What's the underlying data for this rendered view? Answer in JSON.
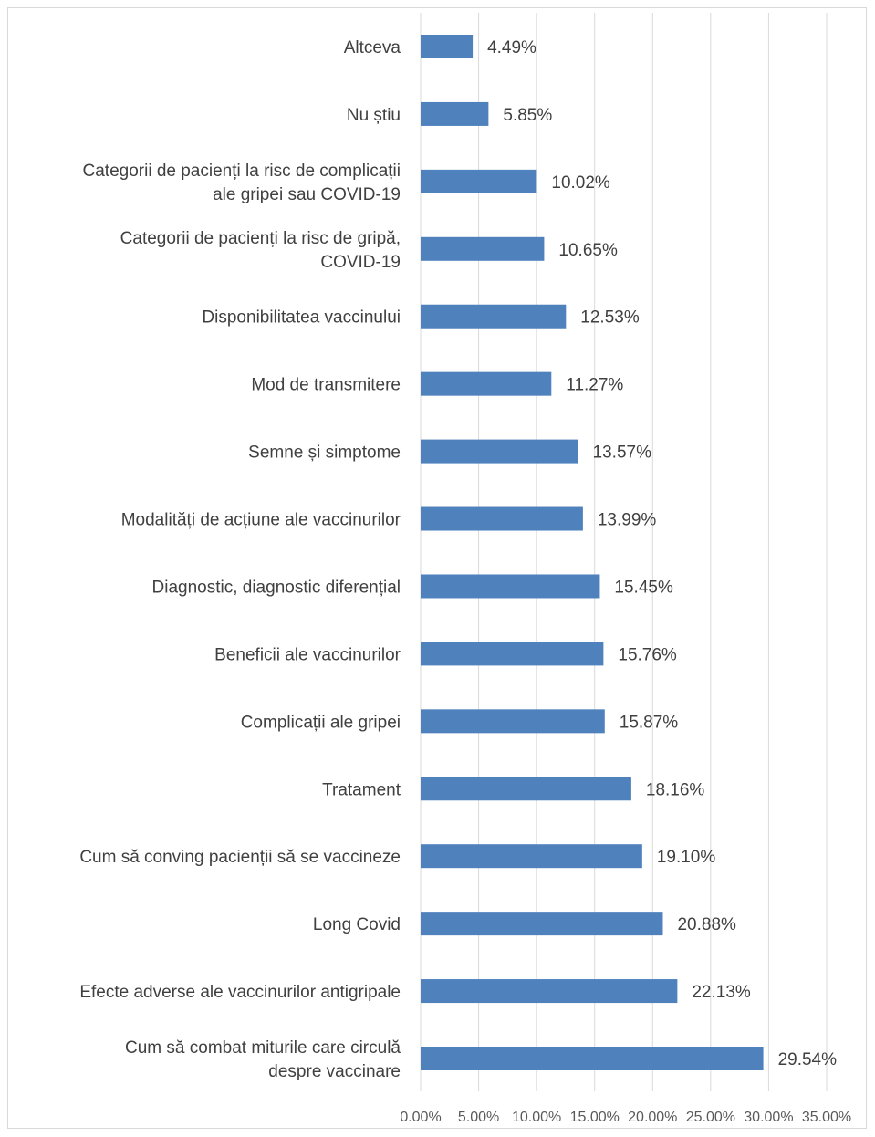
{
  "chart_data": {
    "type": "bar",
    "orientation": "horizontal",
    "categories": [
      "Altceva",
      "Nu știu",
      "Categorii de pacienți la risc de complicații ale gripei sau COVID-19",
      "Categorii de pacienți la risc de gripă, COVID-19",
      "Disponibilitatea vaccinului",
      "Mod de transmitere",
      "Semne și simptome",
      "Modalități de acțiune ale vaccinurilor",
      "Diagnostic, diagnostic diferențial",
      "Beneficii ale vaccinurilor",
      "Complicații ale gripei",
      "Tratament",
      "Cum să conving pacienții să se vaccineze",
      "Long Covid",
      "Efecte adverse ale vaccinurilor antigripale",
      "Cum să combat miturile care circulă despre vaccinare"
    ],
    "category_lines": [
      [
        "Altceva"
      ],
      [
        "Nu știu"
      ],
      [
        "Categorii de pacienți la risc de complicații",
        "ale gripei sau COVID-19"
      ],
      [
        "Categorii de pacienți la risc de gripă,",
        "COVID-19"
      ],
      [
        "Disponibilitatea vaccinului"
      ],
      [
        "Mod de transmitere"
      ],
      [
        "Semne și simptome"
      ],
      [
        "Modalități de acțiune ale vaccinurilor"
      ],
      [
        "Diagnostic, diagnostic diferențial"
      ],
      [
        "Beneficii ale vaccinurilor"
      ],
      [
        "Complicații ale gripei"
      ],
      [
        "Tratament"
      ],
      [
        "Cum să conving pacienții să se vaccineze"
      ],
      [
        "Long Covid"
      ],
      [
        "Efecte adverse ale vaccinurilor antigripale"
      ],
      [
        "Cum să combat miturile care circulă",
        "despre vaccinare"
      ]
    ],
    "values": [
      4.49,
      5.85,
      10.02,
      10.65,
      12.53,
      11.27,
      13.57,
      13.99,
      15.45,
      15.76,
      15.87,
      18.16,
      19.1,
      20.88,
      22.13,
      29.54
    ],
    "value_labels": [
      "4.49%",
      "5.85%",
      "10.02%",
      "10.65%",
      "12.53%",
      "11.27%",
      "13.57%",
      "13.99%",
      "15.45%",
      "15.76%",
      "15.87%",
      "18.16%",
      "19.10%",
      "20.88%",
      "22.13%",
      "29.54%"
    ],
    "xticks": [
      0,
      5,
      10,
      15,
      20,
      25,
      30,
      35
    ],
    "xtick_labels": [
      "0.00%",
      "5.00%",
      "10.00%",
      "15.00%",
      "20.00%",
      "25.00%",
      "30.00%",
      "35.00%"
    ],
    "xlim": [
      0,
      35
    ],
    "title": "",
    "xlabel": "",
    "ylabel": "",
    "grid": "vertical",
    "legend": "none",
    "bar_color": "#4f81bd",
    "grid_color": "#d9d9d9",
    "text_color": "#404040"
  }
}
